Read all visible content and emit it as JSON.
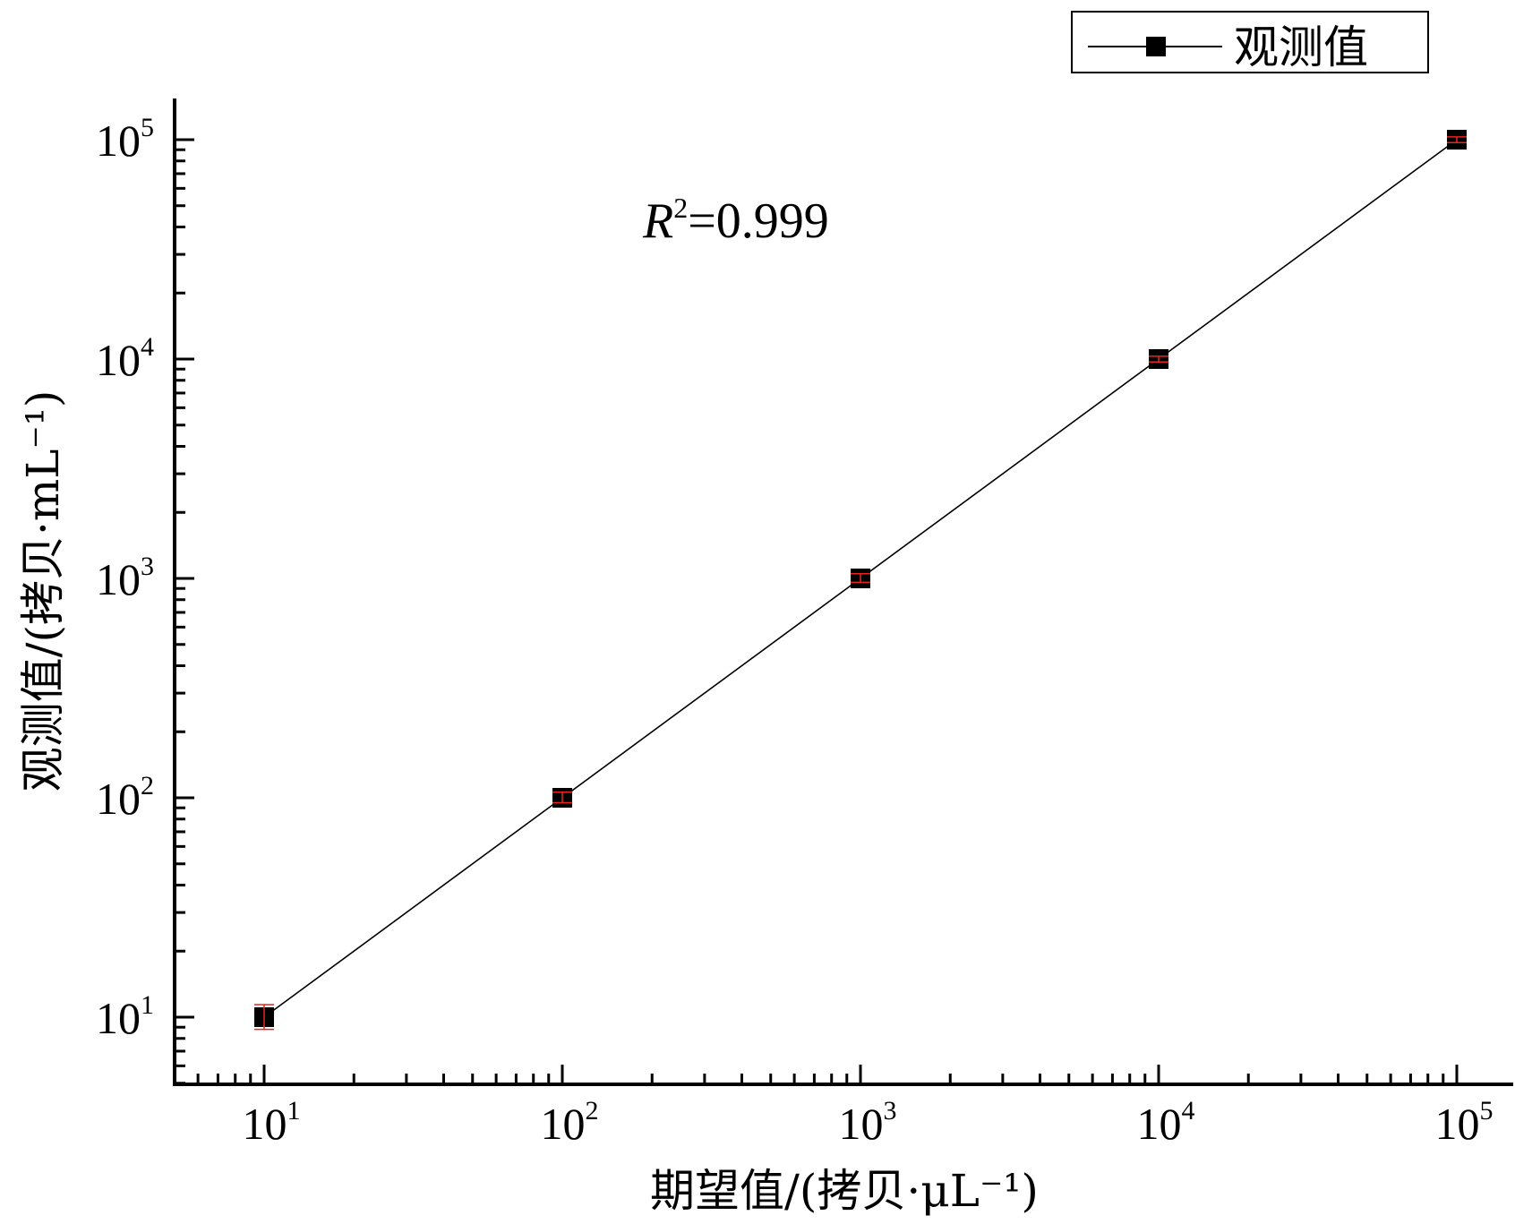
{
  "chart_data": {
    "type": "line",
    "xscale": "log",
    "yscale": "log",
    "xlim": [
      5,
      150000
    ],
    "ylim": [
      5,
      160000
    ],
    "xlabel": "期望值/(拷贝·μL⁻¹)",
    "ylabel": "观测值/(拷贝·mL⁻¹)",
    "x_ticks": [
      10,
      100,
      1000,
      10000,
      100000
    ],
    "y_ticks": [
      10,
      100,
      1000,
      10000,
      100000
    ],
    "tick_base": "10",
    "tick_exponents": [
      "1",
      "2",
      "3",
      "4",
      "5"
    ],
    "series": [
      {
        "name": "观测值",
        "color": "#000000",
        "marker": "square",
        "x": [
          10,
          100,
          1000,
          10000,
          100000
        ],
        "y": [
          10,
          100,
          1000,
          10000,
          100000
        ],
        "error_low": [
          8.8,
          95,
          960,
          9700,
          97000
        ],
        "error_high": [
          11.4,
          106,
          1050,
          10300,
          103000
        ],
        "error_color": "#e8251f"
      }
    ],
    "annotation": {
      "symbol": "R",
      "exponent": "2",
      "value": "=0.999"
    },
    "legend": {
      "position": "top-right",
      "label": "观测值"
    },
    "grid": false
  }
}
